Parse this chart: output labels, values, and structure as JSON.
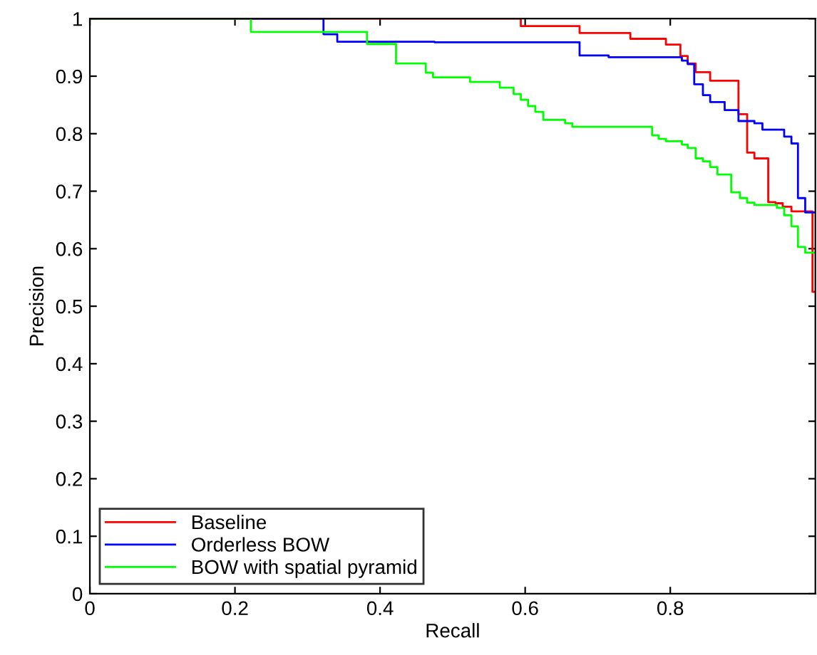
{
  "chart_data": {
    "type": "step",
    "xlabel": "Recall",
    "ylabel": "Precision",
    "xlim": [
      0,
      1
    ],
    "ylim": [
      0,
      1
    ],
    "xticks": [
      0,
      0.2,
      0.4,
      0.6,
      0.8
    ],
    "yticks": [
      0,
      0.1,
      0.2,
      0.3,
      0.4,
      0.5,
      0.6,
      0.7,
      0.8,
      0.9,
      1
    ],
    "grid": false,
    "legend": "bottom left",
    "marker": "none",
    "line_style": "solid",
    "series": [
      {
        "name": "Baseline",
        "color": "#ff0000",
        "x": [
          0,
          0.594,
          0.675,
          0.745,
          0.794,
          0.814,
          0.824,
          0.835,
          0.855,
          0.894,
          0.906,
          0.916,
          0.935,
          0.945,
          0.955,
          0.967,
          0.996,
          1
        ],
        "values": [
          1,
          0.987,
          0.975,
          0.965,
          0.955,
          0.935,
          0.922,
          0.907,
          0.892,
          0.834,
          0.767,
          0.757,
          0.681,
          0.679,
          0.673,
          0.665,
          0.525,
          0.525
        ]
      },
      {
        "name": "Orderless BOW",
        "color": "#0000ff",
        "x": [
          0,
          0.322,
          0.341,
          0.475,
          0.675,
          0.715,
          0.816,
          0.824,
          0.833,
          0.845,
          0.855,
          0.875,
          0.894,
          0.916,
          0.927,
          0.957,
          0.967,
          0.976,
          0.986,
          1
        ],
        "values": [
          1,
          0.973,
          0.96,
          0.959,
          0.936,
          0.933,
          0.927,
          0.921,
          0.886,
          0.867,
          0.855,
          0.841,
          0.822,
          0.818,
          0.807,
          0.795,
          0.783,
          0.688,
          0.663,
          0.663
        ]
      },
      {
        "name": "BOW with spatial pyramid",
        "color": "#00ff00",
        "x": [
          0,
          0.222,
          0.382,
          0.422,
          0.463,
          0.473,
          0.524,
          0.565,
          0.584,
          0.594,
          0.604,
          0.614,
          0.625,
          0.655,
          0.665,
          0.775,
          0.784,
          0.794,
          0.816,
          0.824,
          0.835,
          0.845,
          0.855,
          0.865,
          0.884,
          0.896,
          0.906,
          0.916,
          0.947,
          0.957,
          0.967,
          0.976,
          0.986,
          1
        ],
        "values": [
          1,
          0.977,
          0.956,
          0.922,
          0.906,
          0.898,
          0.89,
          0.88,
          0.869,
          0.859,
          0.848,
          0.838,
          0.824,
          0.818,
          0.812,
          0.797,
          0.791,
          0.787,
          0.781,
          0.775,
          0.757,
          0.752,
          0.742,
          0.729,
          0.698,
          0.688,
          0.68,
          0.676,
          0.671,
          0.658,
          0.639,
          0.603,
          0.593,
          0.593
        ]
      }
    ]
  }
}
